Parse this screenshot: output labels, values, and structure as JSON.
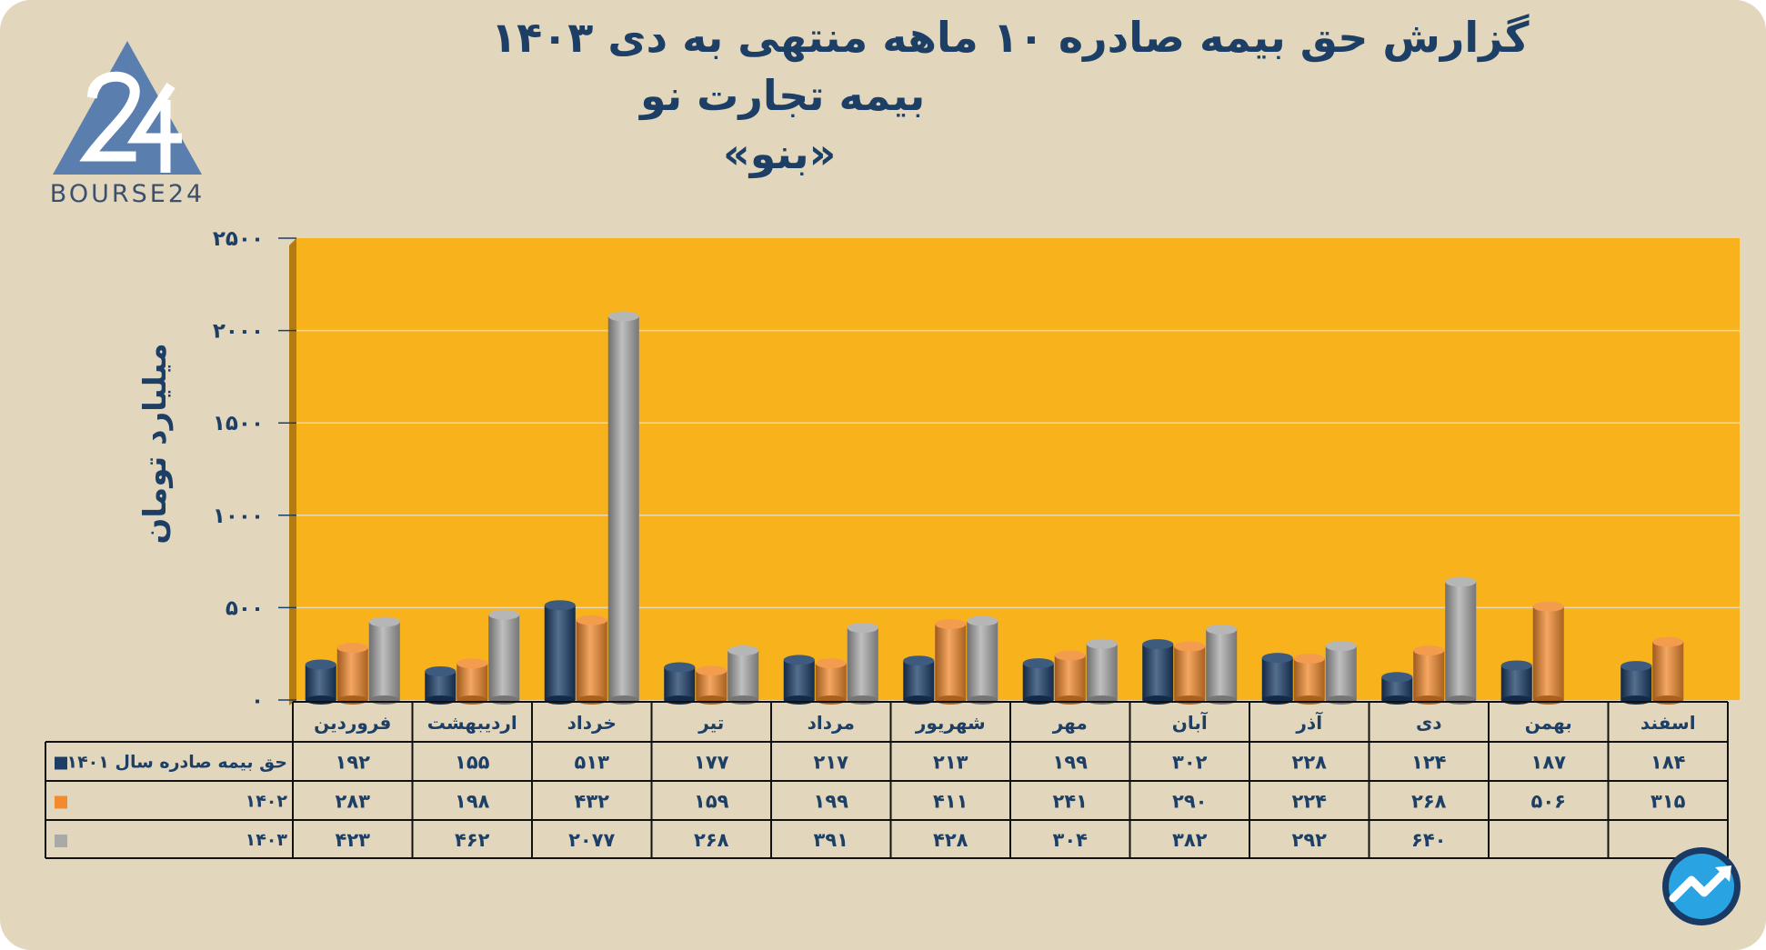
{
  "header": {
    "title_line1": "گزارش  حق بیمه صادره ۱۰ ماهه منتهی به دی ۱۴۰۳",
    "title_line2": "بیمه تجارت نو",
    "title_line3": "«بنو»"
  },
  "logo": {
    "text": "BOURSE24",
    "icon": "bourse24-triangle-logo"
  },
  "corner_badge": {
    "icon": "trend-arrow-circle-icon"
  },
  "colors": {
    "background": "#e2d7bc",
    "plot_area": "#f8b31c",
    "series_1401": "#1b3e68",
    "series_1402": "#f28a2e",
    "series_1403": "#a9a9a9",
    "text": "#1d3f66"
  },
  "chart_data": {
    "type": "bar",
    "ylabel": "میلیارد تومان",
    "ylim": [
      0,
      2500
    ],
    "yticks": [
      0,
      500,
      1000,
      1500,
      2000,
      2500
    ],
    "ytick_labels": [
      "۰",
      "۵۰۰",
      "۱۰۰۰",
      "۱۵۰۰",
      "۲۰۰۰",
      "۲۵۰۰"
    ],
    "grid": true,
    "legend": "data-table-left",
    "categories": [
      "فروردین",
      "اردیبهشت",
      "خرداد",
      "تیر",
      "مرداد",
      "شهریور",
      "مهر",
      "آبان",
      "آذر",
      "دی",
      "بهمن",
      "اسفند"
    ],
    "series": [
      {
        "name": "حق بیمه صادره سال ۱۴۰۱",
        "color": "#1b3e68",
        "values": [
          192,
          155,
          513,
          177,
          217,
          213,
          199,
          302,
          228,
          124,
          187,
          184
        ],
        "labels": [
          "۱۹۲",
          "۱۵۵",
          "۵۱۳",
          "۱۷۷",
          "۲۱۷",
          "۲۱۳",
          "۱۹۹",
          "۳۰۲",
          "۲۲۸",
          "۱۲۴",
          "۱۸۷",
          "۱۸۴"
        ]
      },
      {
        "name": "۱۴۰۲",
        "color": "#f28a2e",
        "values": [
          283,
          198,
          432,
          159,
          199,
          411,
          241,
          290,
          224,
          268,
          506,
          315
        ],
        "labels": [
          "۲۸۳",
          "۱۹۸",
          "۴۳۲",
          "۱۵۹",
          "۱۹۹",
          "۴۱۱",
          "۲۴۱",
          "۲۹۰",
          "۲۲۴",
          "۲۶۸",
          "۵۰۶",
          "۳۱۵"
        ]
      },
      {
        "name": "۱۴۰۳",
        "color": "#a9a9a9",
        "values": [
          423,
          462,
          2077,
          268,
          391,
          428,
          304,
          382,
          292,
          640,
          null,
          null
        ],
        "labels": [
          "۴۲۳",
          "۴۶۲",
          "۲۰۷۷",
          "۲۶۸",
          "۳۹۱",
          "۴۲۸",
          "۳۰۴",
          "۳۸۲",
          "۲۹۲",
          "۶۴۰",
          "",
          ""
        ]
      }
    ]
  }
}
